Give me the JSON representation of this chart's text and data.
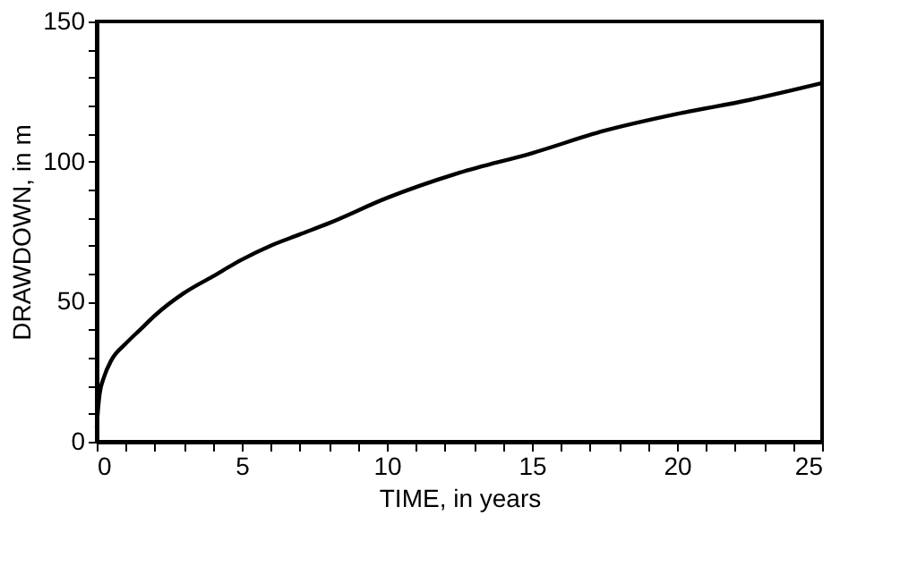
{
  "chart_data": {
    "type": "line",
    "xlabel": "TIME, in years",
    "ylabel": "DRAWDOWN, in m",
    "x": [
      0,
      0.05,
      0.1,
      0.25,
      0.5,
      1,
      1.5,
      2,
      3,
      4,
      5,
      6,
      7,
      8,
      10,
      12.5,
      15,
      17.5,
      20,
      22.5,
      25
    ],
    "series": [
      {
        "color": "#000000",
        "values": [
          5,
          12,
          17,
          23,
          29,
          35,
          40,
          45,
          53,
          59,
          65,
          70,
          74,
          78,
          87,
          96,
          103,
          111,
          117,
          122,
          128
        ]
      }
    ],
    "xlim": [
      0,
      25
    ],
    "ylim": [
      0,
      150
    ],
    "xticks": [
      0,
      {
        "value": 1,
        "label": null
      },
      {
        "value": 2,
        "label": null
      },
      {
        "value": 3,
        "label": null
      },
      {
        "value": 4,
        "label": null
      },
      5,
      {
        "value": 6,
        "label": null
      },
      {
        "value": 7,
        "label": null
      },
      {
        "value": 8,
        "label": null
      },
      {
        "value": 9,
        "label": null
      },
      10,
      {
        "value": 11,
        "label": null
      },
      {
        "value": 12,
        "label": null
      },
      {
        "value": 13,
        "label": null
      },
      {
        "value": 14,
        "label": null
      },
      15,
      {
        "value": 16,
        "label": null
      },
      {
        "value": 17,
        "label": null
      },
      {
        "value": 18,
        "label": null
      },
      {
        "value": 19,
        "label": null
      },
      20,
      {
        "value": 21,
        "label": null
      },
      {
        "value": 22,
        "label": null
      },
      {
        "value": 23,
        "label": null
      },
      {
        "value": 24,
        "label": null
      },
      25
    ],
    "yticks": [
      0,
      {
        "value": 10,
        "label": null
      },
      {
        "value": 20,
        "label": null
      },
      {
        "value": 30,
        "label": null
      },
      {
        "value": 40,
        "label": null
      },
      50,
      {
        "value": 60,
        "label": null
      },
      {
        "value": 70,
        "label": null
      },
      {
        "value": 80,
        "label": null
      },
      {
        "value": 90,
        "label": null
      },
      100,
      {
        "value": 110,
        "label": null
      },
      {
        "value": 120,
        "label": null
      },
      {
        "value": 130,
        "label": null
      },
      {
        "value": 140,
        "label": null
      },
      150
    ],
    "grid": false,
    "line_style": "solid",
    "marker": "none"
  }
}
